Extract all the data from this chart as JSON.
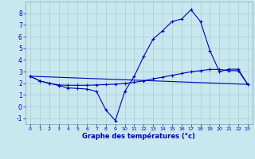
{
  "xlabel": "Graphe des températures (°c)",
  "x_ticks": [
    0,
    1,
    2,
    3,
    4,
    5,
    6,
    7,
    8,
    9,
    10,
    11,
    12,
    13,
    14,
    15,
    16,
    17,
    18,
    19,
    20,
    21,
    22,
    23
  ],
  "ylim": [
    -1.5,
    9.0
  ],
  "xlim": [
    -0.5,
    23.5
  ],
  "yticks": [
    -1,
    0,
    1,
    2,
    3,
    4,
    5,
    6,
    7,
    8
  ],
  "line_color": "#0000bb",
  "bg_color": "#c8e8f0",
  "grid_color": "#aacccc",
  "line1_x": [
    0,
    1,
    2,
    3,
    4,
    5,
    6,
    7,
    8,
    9,
    10,
    11,
    12,
    13,
    14,
    15,
    16,
    17,
    18,
    19,
    20,
    21,
    22,
    23
  ],
  "line1_y": [
    2.6,
    2.2,
    2.0,
    1.8,
    1.6,
    1.55,
    1.5,
    1.3,
    -0.3,
    -1.2,
    1.3,
    2.6,
    4.3,
    5.8,
    6.5,
    7.3,
    7.5,
    8.3,
    7.3,
    4.8,
    3.0,
    3.2,
    3.2,
    1.9
  ],
  "line2_x": [
    0,
    23
  ],
  "line2_y": [
    2.6,
    1.9
  ],
  "line3_x": [
    0,
    1,
    2,
    3,
    4,
    5,
    6,
    7,
    8,
    9,
    10,
    11,
    12,
    13,
    14,
    15,
    16,
    17,
    18,
    19,
    20,
    21,
    22,
    23
  ],
  "line3_y": [
    2.6,
    2.2,
    2.0,
    1.85,
    1.82,
    1.82,
    1.82,
    1.85,
    1.88,
    1.92,
    1.98,
    2.08,
    2.2,
    2.38,
    2.52,
    2.68,
    2.83,
    2.98,
    3.08,
    3.18,
    3.18,
    3.08,
    3.08,
    1.9
  ]
}
